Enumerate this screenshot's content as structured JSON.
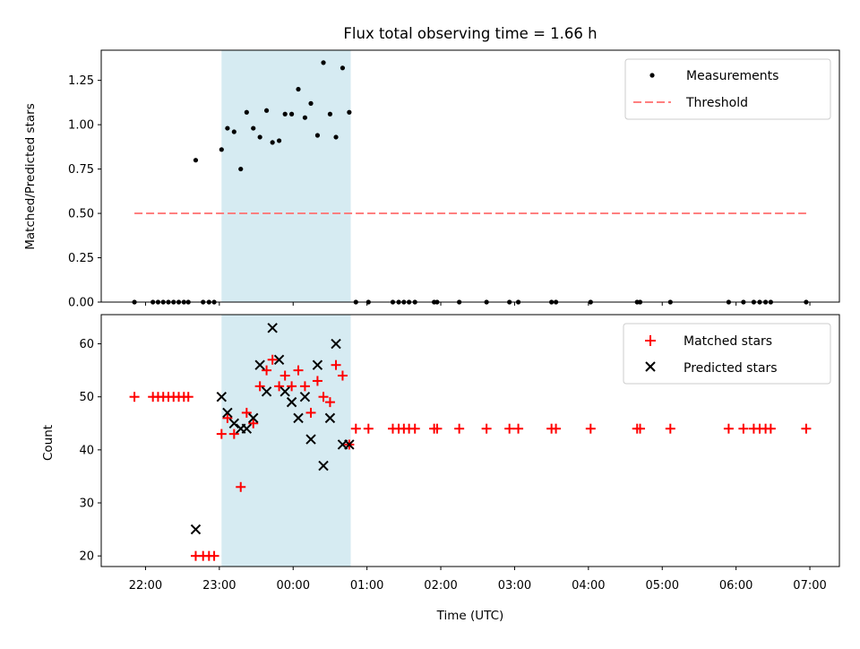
{
  "chart_data": [
    {
      "type": "scatter",
      "title": "Flux total observing time = 1.66 h",
      "xlabel": "",
      "ylabel": "Matched/Predicted stars",
      "ylim": [
        0,
        1.42
      ],
      "yticks": [
        "0.00",
        "0.25",
        "0.50",
        "0.75",
        "1.00",
        "1.25"
      ],
      "highlight_span": {
        "start": 23.03,
        "end": 24.78
      },
      "threshold": {
        "name": "Threshold",
        "value": 0.5,
        "x_start": 21.85,
        "x_end": 30.95,
        "color": "#ff7f7f"
      },
      "legend": {
        "position": "top-right",
        "entries": [
          "Measurements",
          "Threshold"
        ]
      },
      "series": [
        {
          "name": "Measurements",
          "color": "#000000",
          "points": [
            [
              21.85,
              0
            ],
            [
              22.1,
              0
            ],
            [
              22.17,
              0
            ],
            [
              22.24,
              0
            ],
            [
              22.31,
              0
            ],
            [
              22.38,
              0
            ],
            [
              22.45,
              0
            ],
            [
              22.52,
              0
            ],
            [
              22.58,
              0
            ],
            [
              22.68,
              0.8
            ],
            [
              22.78,
              0
            ],
            [
              22.86,
              0
            ],
            [
              22.93,
              0
            ],
            [
              23.03,
              0.86
            ],
            [
              23.11,
              0.98
            ],
            [
              23.2,
              0.96
            ],
            [
              23.29,
              0.75
            ],
            [
              23.37,
              1.07
            ],
            [
              23.46,
              0.98
            ],
            [
              23.55,
              0.93
            ],
            [
              23.64,
              1.08
            ],
            [
              23.72,
              0.9
            ],
            [
              23.81,
              0.91
            ],
            [
              23.89,
              1.06
            ],
            [
              23.98,
              1.06
            ],
            [
              24.07,
              1.2
            ],
            [
              24.16,
              1.04
            ],
            [
              24.24,
              1.12
            ],
            [
              24.33,
              0.94
            ],
            [
              24.41,
              1.35
            ],
            [
              24.5,
              1.06
            ],
            [
              24.58,
              0.93
            ],
            [
              24.67,
              1.32
            ],
            [
              24.76,
              1.07
            ],
            [
              24.85,
              0
            ],
            [
              25.02,
              0
            ],
            [
              25.35,
              0
            ],
            [
              25.43,
              0
            ],
            [
              25.5,
              0
            ],
            [
              25.57,
              0
            ],
            [
              25.65,
              0
            ],
            [
              25.91,
              0
            ],
            [
              25.95,
              0
            ],
            [
              26.25,
              0
            ],
            [
              26.62,
              0
            ],
            [
              26.93,
              0
            ],
            [
              27.05,
              0
            ],
            [
              27.5,
              0
            ],
            [
              27.56,
              0
            ],
            [
              28.03,
              0
            ],
            [
              28.66,
              0
            ],
            [
              28.7,
              0
            ],
            [
              29.11,
              0
            ],
            [
              29.9,
              0
            ],
            [
              30.1,
              0
            ],
            [
              30.24,
              0
            ],
            [
              30.32,
              0
            ],
            [
              30.4,
              0
            ],
            [
              30.47,
              0
            ],
            [
              30.95,
              0
            ]
          ]
        }
      ]
    },
    {
      "type": "scatter",
      "title": "",
      "xlabel": "Time (UTC)",
      "ylabel": "Count",
      "ylim": [
        18,
        65.5
      ],
      "xlim": [
        21.4,
        31.4
      ],
      "yticks": [
        "20",
        "30",
        "40",
        "50",
        "60"
      ],
      "xticks": [
        "22:00",
        "23:00",
        "00:00",
        "01:00",
        "02:00",
        "03:00",
        "04:00",
        "05:00",
        "06:00",
        "07:00"
      ],
      "highlight_span": {
        "start": 23.03,
        "end": 24.78
      },
      "legend": {
        "position": "top-right",
        "entries": [
          "Matched stars",
          "Predicted stars"
        ]
      },
      "series": [
        {
          "name": "Matched stars",
          "color": "#ff0000",
          "marker": "plus",
          "points": [
            [
              21.85,
              50
            ],
            [
              22.1,
              50
            ],
            [
              22.17,
              50
            ],
            [
              22.24,
              50
            ],
            [
              22.31,
              50
            ],
            [
              22.38,
              50
            ],
            [
              22.45,
              50
            ],
            [
              22.52,
              50
            ],
            [
              22.58,
              50
            ],
            [
              22.68,
              20
            ],
            [
              22.78,
              20
            ],
            [
              22.86,
              20
            ],
            [
              22.93,
              20
            ],
            [
              23.03,
              43
            ],
            [
              23.11,
              46
            ],
            [
              23.2,
              43
            ],
            [
              23.29,
              33
            ],
            [
              23.37,
              47
            ],
            [
              23.46,
              45
            ],
            [
              23.55,
              52
            ],
            [
              23.64,
              55
            ],
            [
              23.72,
              57
            ],
            [
              23.81,
              52
            ],
            [
              23.89,
              54
            ],
            [
              23.98,
              52
            ],
            [
              24.07,
              55
            ],
            [
              24.16,
              52
            ],
            [
              24.24,
              47
            ],
            [
              24.33,
              53
            ],
            [
              24.41,
              50
            ],
            [
              24.5,
              49
            ],
            [
              24.58,
              56
            ],
            [
              24.67,
              54
            ],
            [
              24.76,
              41
            ],
            [
              24.85,
              44
            ],
            [
              25.02,
              44
            ],
            [
              25.35,
              44
            ],
            [
              25.43,
              44
            ],
            [
              25.5,
              44
            ],
            [
              25.57,
              44
            ],
            [
              25.65,
              44
            ],
            [
              25.91,
              44
            ],
            [
              25.95,
              44
            ],
            [
              26.25,
              44
            ],
            [
              26.62,
              44
            ],
            [
              26.93,
              44
            ],
            [
              27.05,
              44
            ],
            [
              27.5,
              44
            ],
            [
              27.56,
              44
            ],
            [
              28.03,
              44
            ],
            [
              28.66,
              44
            ],
            [
              28.7,
              44
            ],
            [
              29.11,
              44
            ],
            [
              29.9,
              44
            ],
            [
              30.1,
              44
            ],
            [
              30.24,
              44
            ],
            [
              30.32,
              44
            ],
            [
              30.4,
              44
            ],
            [
              30.47,
              44
            ],
            [
              30.95,
              44
            ]
          ]
        },
        {
          "name": "Predicted stars",
          "color": "#000000",
          "marker": "x",
          "points": [
            [
              22.68,
              25
            ],
            [
              23.03,
              50
            ],
            [
              23.11,
              47
            ],
            [
              23.2,
              45
            ],
            [
              23.29,
              44
            ],
            [
              23.37,
              44
            ],
            [
              23.46,
              46
            ],
            [
              23.55,
              56
            ],
            [
              23.64,
              51
            ],
            [
              23.72,
              63
            ],
            [
              23.81,
              57
            ],
            [
              23.89,
              51
            ],
            [
              23.98,
              49
            ],
            [
              24.07,
              46
            ],
            [
              24.16,
              50
            ],
            [
              24.24,
              42
            ],
            [
              24.33,
              56
            ],
            [
              24.41,
              37
            ],
            [
              24.5,
              46
            ],
            [
              24.58,
              60
            ],
            [
              24.67,
              41
            ],
            [
              24.76,
              41
            ]
          ]
        }
      ]
    }
  ]
}
